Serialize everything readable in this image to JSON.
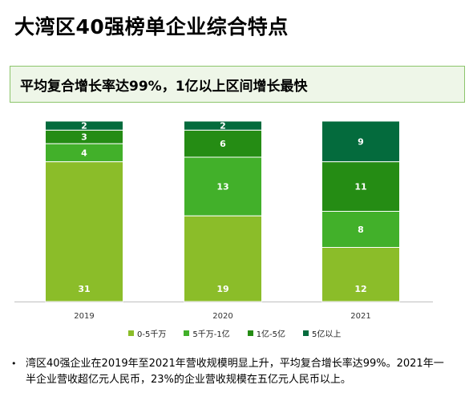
{
  "title": "大湾区40强榜单企业综合特点",
  "subtitle": "平均复合增长率达99%，1亿以上区间增长最快",
  "chart_data": {
    "type": "bar",
    "stacked": true,
    "categories": [
      "2019",
      "2020",
      "2021"
    ],
    "series": [
      {
        "name": "0-5千万",
        "values": [
          31,
          19,
          12
        ],
        "color": "#8bbd29"
      },
      {
        "name": "5千万-1亿",
        "values": [
          4,
          13,
          8
        ],
        "color": "#42b02a"
      },
      {
        "name": "1亿-5亿",
        "values": [
          3,
          6,
          11
        ],
        "color": "#258c14"
      },
      {
        "name": "5亿以上",
        "values": [
          2,
          2,
          9
        ],
        "color": "#046b3d"
      }
    ],
    "ylim": [
      0,
      40
    ],
    "grid": false,
    "legend_position": "bottom"
  },
  "notes": [
    "湾区40强企业在2019年至2021年营收规模明显上升，平均复合增长率达99%。2021年一半企业营收超亿元人民币，23%的企业营收规模在五亿元人民币以上。"
  ]
}
